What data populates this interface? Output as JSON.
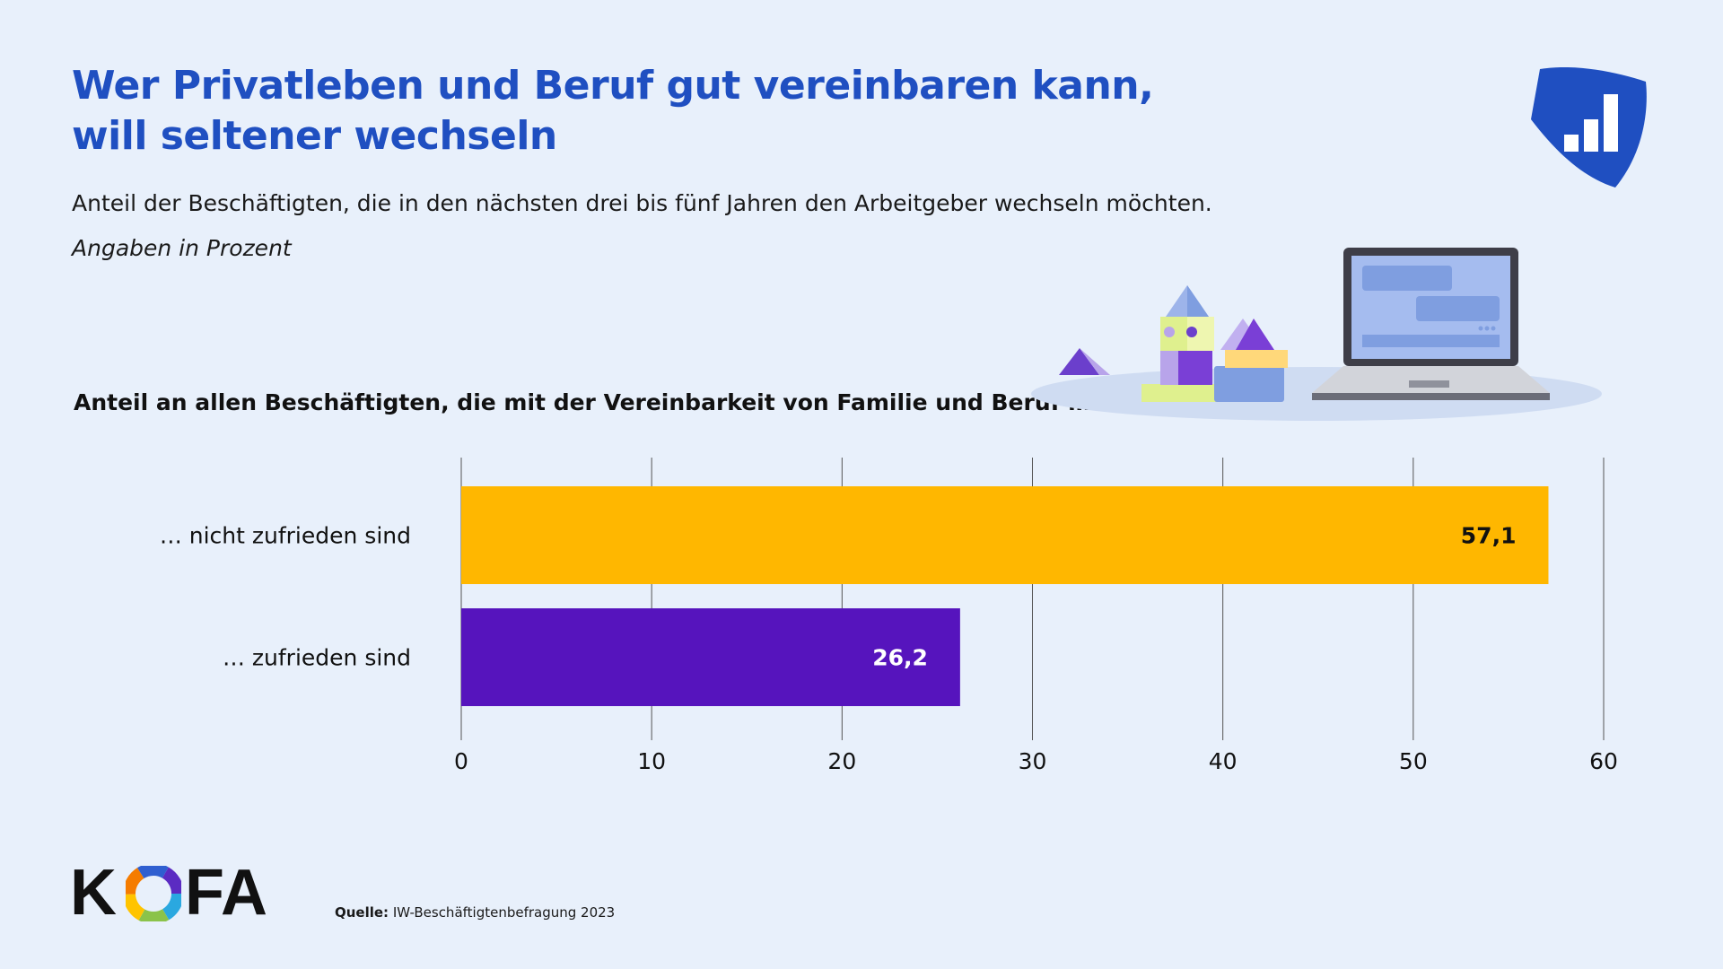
{
  "header": {
    "title": "Wer Privatleben und Beruf gut vereinbaren kann, will seltener wechseln",
    "subtitle": "Anteil der Beschäftigten, die in den nächsten drei bis fünf Jahren den Arbeitgeber wechseln möchten.",
    "unit_note": "Angaben in Prozent",
    "chart_heading": "Anteil an allen Beschäftigten, die mit der Vereinbarkeit von Familie und Beruf …"
  },
  "colors": {
    "title": "#1f4fc1",
    "bar_not_satisfied": "#ffb700",
    "bar_satisfied": "#5614bd",
    "background": "#e8f0fb",
    "badge": "#1f4fc1"
  },
  "icons": {
    "badge": "bar-chart-shield-icon",
    "illustration": "toy-blocks-and-laptop-illustration"
  },
  "chart_data": {
    "type": "bar",
    "orientation": "horizontal",
    "categories": [
      "… nicht zufrieden sind",
      "… zufrieden sind"
    ],
    "values": [
      57.1,
      26.2
    ],
    "value_labels": [
      "57,1",
      "26,2"
    ],
    "xlim": [
      0,
      60
    ],
    "xticks": [
      0,
      10,
      20,
      30,
      40,
      50,
      60
    ],
    "grid": true,
    "xlabel": "",
    "ylabel": ""
  },
  "footer": {
    "logo_part1": "K",
    "logo_part2": "FA",
    "source_label": "Quelle:",
    "source_text": " IW-Beschäftigtenbefragung 2023"
  }
}
